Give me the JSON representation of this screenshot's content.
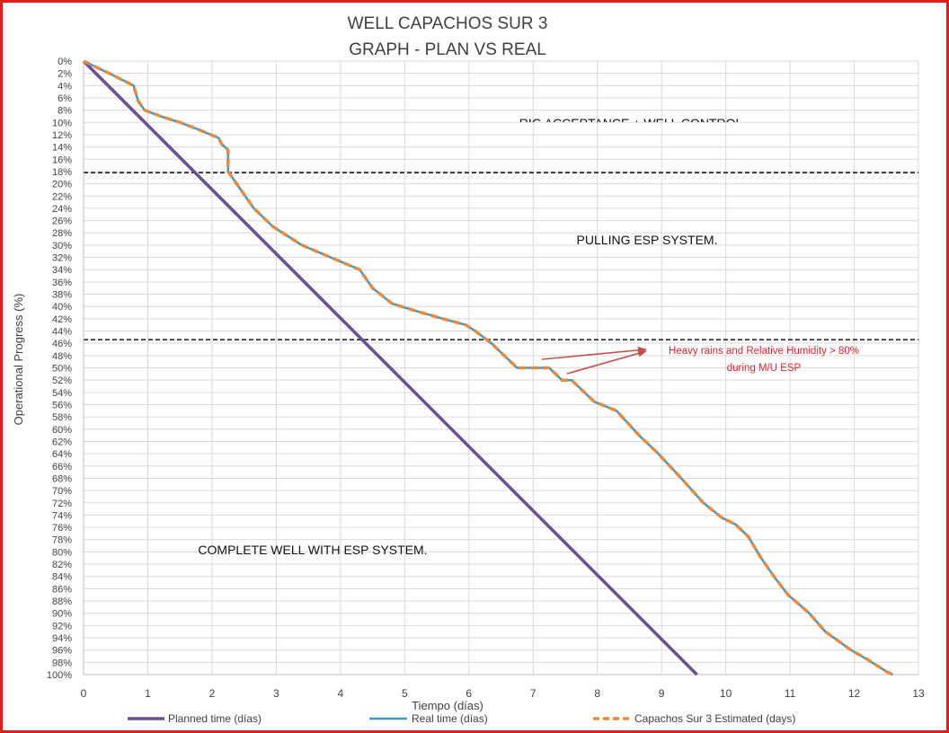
{
  "chart_data": {
    "type": "line",
    "title": [
      "WELL CAPACHOS SUR 3",
      "GRAPH  - PLAN VS REAL"
    ],
    "xlabel": "Tiempo (días)",
    "ylabel": "Operational Progress (%)",
    "xlim": [
      0,
      13
    ],
    "ylim": [
      0,
      100
    ],
    "y_inverted": true,
    "x_ticks": [
      0,
      1,
      2,
      3,
      4,
      5,
      6,
      7,
      8,
      9,
      10,
      11,
      12,
      13
    ],
    "y_tick_step": 2,
    "y_tick_suffix": "%",
    "grid": true,
    "legend_position": "bottom",
    "series": [
      {
        "name": "Planned time (días)",
        "color": "#6b4f8f",
        "style": "solid",
        "points": [
          [
            0,
            0
          ],
          [
            9.55,
            100
          ]
        ]
      },
      {
        "name": "Real time (días)",
        "color": "#3d9cc4",
        "style": "solid",
        "points": [
          [
            0,
            0
          ],
          [
            0.4,
            2
          ],
          [
            0.78,
            4
          ],
          [
            0.85,
            6.5
          ],
          [
            0.95,
            8
          ],
          [
            1.2,
            9
          ],
          [
            1.5,
            10
          ],
          [
            1.75,
            11
          ],
          [
            2.1,
            12.5
          ],
          [
            2.15,
            13.5
          ],
          [
            2.25,
            14.5
          ],
          [
            2.25,
            18
          ],
          [
            2.65,
            24
          ],
          [
            2.95,
            27
          ],
          [
            3.4,
            30
          ],
          [
            3.85,
            32
          ],
          [
            4.3,
            34
          ],
          [
            4.5,
            37
          ],
          [
            4.8,
            39.5
          ],
          [
            5.1,
            40.5
          ],
          [
            5.6,
            42
          ],
          [
            5.95,
            43
          ],
          [
            6.1,
            44
          ],
          [
            6.35,
            46
          ],
          [
            6.75,
            50
          ],
          [
            7.25,
            50
          ],
          [
            7.45,
            52
          ],
          [
            7.6,
            52
          ],
          [
            7.95,
            55.5
          ],
          [
            8.3,
            57
          ],
          [
            8.65,
            61
          ],
          [
            8.95,
            64
          ],
          [
            9.35,
            68.5
          ],
          [
            9.65,
            72
          ],
          [
            9.95,
            74.5
          ],
          [
            10.15,
            75.5
          ],
          [
            10.35,
            77.5
          ],
          [
            10.55,
            81
          ],
          [
            10.75,
            84
          ],
          [
            10.97,
            87
          ],
          [
            11.3,
            90
          ],
          [
            11.55,
            93
          ],
          [
            11.95,
            96
          ],
          [
            12.2,
            97.5
          ],
          [
            12.5,
            99.5
          ],
          [
            12.6,
            100
          ]
        ]
      },
      {
        "name": "Capachos Sur 3 Estimated (days)",
        "color": "#e98a3c",
        "style": "dashed",
        "same_as": "Real time (días)"
      }
    ],
    "reference_lines": [
      {
        "axis": "y",
        "value": 18.2,
        "style": "dashed"
      },
      {
        "axis": "y",
        "value": 45.4,
        "style": "dashed"
      }
    ],
    "zone_labels": [
      {
        "text": "RIG ACCEPTANCE + WELL CONTROL"
      },
      {
        "text": "PULLING ESP SYSTEM."
      },
      {
        "text": "COMPLETE WELL WITH ESP SYSTEM."
      }
    ],
    "annotation": {
      "lines": [
        "Heavy rains and Relative  Humidity > 80%",
        "during M/U ESP"
      ],
      "color": "#e0242b"
    }
  }
}
